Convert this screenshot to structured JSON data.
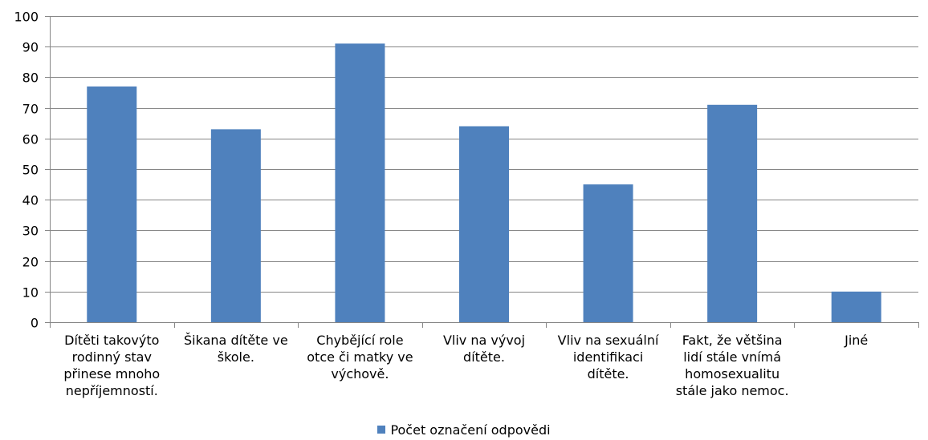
{
  "chart_data": {
    "type": "bar",
    "title": "",
    "xlabel": "",
    "ylabel": "",
    "ylim": [
      0,
      100
    ],
    "ytick_step": 10,
    "grid": true,
    "legend_position": "bottom",
    "categories": [
      "Dítěti takovýto rodinný stav přinese mnoho nepříjemností.",
      "Šikana dítěte ve škole.",
      "Chybějící role otce či matky ve výchově.",
      "Vliv na vývoj dítěte.",
      "Vliv na sexuální identifikaci dítěte.",
      "Fakt, že většina lidí stále vnímá homosexualitu stále jako nemoc.",
      "Jiné"
    ],
    "category_lines": [
      [
        "Dítěti takovýto",
        "rodinný stav",
        "přinese mnoho",
        "nepříjemností."
      ],
      [
        "Šikana dítěte ve",
        "škole."
      ],
      [
        "Chybějící role",
        "otce či matky ve",
        "výchově."
      ],
      [
        "Vliv na vývoj",
        "dítěte."
      ],
      [
        "Vliv na sexuální",
        "identifikaci",
        "dítěte."
      ],
      [
        "Fakt, že většina",
        "lidí stále vnímá",
        "homosexualitu",
        "stále jako nemoc."
      ],
      [
        "Jiné"
      ]
    ],
    "series": [
      {
        "name": "Počet označení odpovědi",
        "values": [
          77,
          63,
          91,
          64,
          45,
          71,
          10
        ],
        "color": "#4f81bd"
      }
    ],
    "colors": {
      "grid": "#868686",
      "axis": "#868686",
      "text": "#000000"
    }
  }
}
